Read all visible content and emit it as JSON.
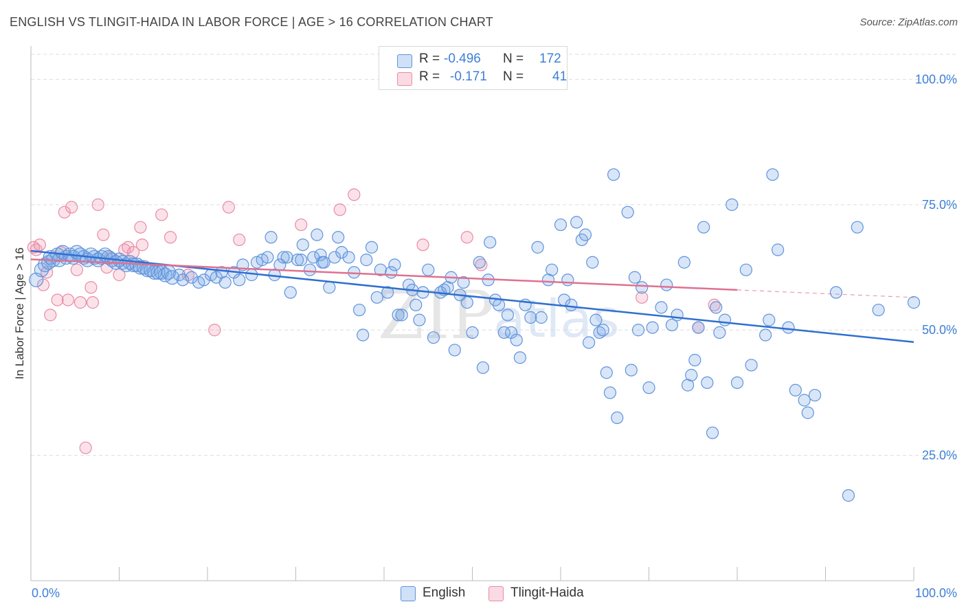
{
  "title": "ENGLISH VS TLINGIT-HAIDA IN LABOR FORCE | AGE > 16 CORRELATION CHART",
  "source": "Source: ZipAtlas.com",
  "legend": {
    "rows": [
      {
        "r_label": "R =",
        "r_value": "-0.496",
        "n_label": "N =",
        "n_value": "172"
      },
      {
        "r_label": "R =",
        "r_value": "-0.171",
        "n_label": "N =",
        "n_value": "41"
      }
    ]
  },
  "bottom_legend": {
    "english": "English",
    "tlingit": "Tlingit-Haida"
  },
  "colors": {
    "english_fill": "rgba(120,165,230,0.28)",
    "english_stroke": "#5f93db",
    "english_line": "#2f6fd0",
    "tlingit_fill": "rgba(240,150,175,0.28)",
    "tlingit_stroke": "#e88ba6",
    "tlingit_line": "#e0708f",
    "tick_text": "#3d7fd6",
    "grid": "#dddddd"
  },
  "chart_data": {
    "type": "scatter",
    "title": "ENGLISH VS TLINGIT-HAIDA IN LABOR FORCE | AGE > 16 CORRELATION CHART",
    "xlabel": "",
    "ylabel": "In Labor Force | Age > 16",
    "xlim": [
      0,
      100
    ],
    "ylim": [
      0,
      105
    ],
    "x_tick_labels": [
      "0.0%",
      "100.0%"
    ],
    "y_ticks": [
      25,
      50,
      75,
      100
    ],
    "y_tick_labels": [
      "25.0%",
      "50.0%",
      "75.0%",
      "100.0%"
    ],
    "grid": true,
    "watermark": "ZIPatlas",
    "series": [
      {
        "name": "English",
        "R": -0.496,
        "N": 172,
        "trend": {
          "x": [
            0,
            100
          ],
          "y": [
            65.8,
            47.6
          ]
        },
        "points": [
          [
            0.6,
            60
          ],
          [
            1.2,
            62
          ],
          [
            1.6,
            63
          ],
          [
            2,
            63.5
          ],
          [
            2.2,
            64.5
          ],
          [
            2.5,
            64
          ],
          [
            3,
            65
          ],
          [
            3.2,
            64
          ],
          [
            3.6,
            65.5
          ],
          [
            4,
            64.5
          ],
          [
            4.4,
            65
          ],
          [
            4.8,
            64.5
          ],
          [
            5.2,
            65.5
          ],
          [
            5.6,
            65
          ],
          [
            6,
            64.5
          ],
          [
            6.4,
            64
          ],
          [
            6.8,
            65
          ],
          [
            7.2,
            64.5
          ],
          [
            7.6,
            64
          ],
          [
            8,
            64.5
          ],
          [
            8.4,
            65
          ],
          [
            8.8,
            64.5
          ],
          [
            9.2,
            64
          ],
          [
            9.6,
            63.5
          ],
          [
            10,
            64
          ],
          [
            10.4,
            63.5
          ],
          [
            10.8,
            63
          ],
          [
            11.2,
            63.5
          ],
          [
            11.6,
            63
          ],
          [
            12,
            63
          ],
          [
            12.4,
            62.5
          ],
          [
            12.8,
            62.5
          ],
          [
            13.2,
            62
          ],
          [
            13.6,
            62
          ],
          [
            14,
            61.5
          ],
          [
            14.4,
            61.5
          ],
          [
            14.8,
            61.5
          ],
          [
            15.2,
            61
          ],
          [
            15.6,
            61.5
          ],
          [
            16,
            60.5
          ],
          [
            16.8,
            61
          ],
          [
            17.2,
            60
          ],
          [
            18.2,
            60.5
          ],
          [
            19,
            59.5
          ],
          [
            19.6,
            60
          ],
          [
            20.4,
            61
          ],
          [
            21,
            60.5
          ],
          [
            21.6,
            61.5
          ],
          [
            22,
            59.5
          ],
          [
            23,
            61.5
          ],
          [
            23.6,
            60
          ],
          [
            24,
            63
          ],
          [
            25,
            61
          ],
          [
            25.6,
            63.5
          ],
          [
            26.2,
            64
          ],
          [
            26.8,
            64.5
          ],
          [
            27.2,
            68.5
          ],
          [
            27.6,
            61
          ],
          [
            28.2,
            63
          ],
          [
            28.6,
            64.5
          ],
          [
            29,
            64.5
          ],
          [
            29.4,
            57.5
          ],
          [
            30.2,
            64
          ],
          [
            30.6,
            64
          ],
          [
            30.8,
            67
          ],
          [
            31.6,
            62
          ],
          [
            32,
            64.5
          ],
          [
            32.4,
            69
          ],
          [
            32.8,
            65
          ],
          [
            33,
            63.5
          ],
          [
            33.2,
            63.5
          ],
          [
            33.8,
            58.5
          ],
          [
            34.4,
            64.5
          ],
          [
            34.8,
            68.5
          ],
          [
            35.2,
            65.5
          ],
          [
            36,
            64.5
          ],
          [
            36.6,
            61.5
          ],
          [
            37.2,
            54
          ],
          [
            37.6,
            49
          ],
          [
            38,
            64
          ],
          [
            38.6,
            66.5
          ],
          [
            39.2,
            56.5
          ],
          [
            39.6,
            62
          ],
          [
            40.4,
            57.5
          ],
          [
            40.8,
            61.5
          ],
          [
            41.2,
            63
          ],
          [
            41.6,
            53
          ],
          [
            42,
            53
          ],
          [
            42.8,
            59
          ],
          [
            43.2,
            58
          ],
          [
            43.6,
            55
          ],
          [
            44,
            52
          ],
          [
            44.4,
            57.5
          ],
          [
            45,
            62
          ],
          [
            45.6,
            48.5
          ],
          [
            46.4,
            57.5
          ],
          [
            46.8,
            58
          ],
          [
            47.2,
            58.5
          ],
          [
            47.6,
            60.5
          ],
          [
            48,
            46
          ],
          [
            48.6,
            57
          ],
          [
            49,
            59.5
          ],
          [
            49.4,
            55.5
          ],
          [
            50,
            49.5
          ],
          [
            50.8,
            63.5
          ],
          [
            51.2,
            42.5
          ],
          [
            51.8,
            60
          ],
          [
            52,
            67.5
          ],
          [
            52.6,
            56
          ],
          [
            53,
            55
          ],
          [
            53.6,
            49.5
          ],
          [
            54,
            53
          ],
          [
            54.4,
            49.5
          ],
          [
            55,
            48
          ],
          [
            55.4,
            44.5
          ],
          [
            56,
            55
          ],
          [
            56.6,
            52.5
          ],
          [
            57.4,
            66.5
          ],
          [
            57.8,
            52.5
          ],
          [
            58.6,
            60
          ],
          [
            59,
            62
          ],
          [
            60,
            71
          ],
          [
            60.4,
            56
          ],
          [
            60.8,
            60
          ],
          [
            61.2,
            55
          ],
          [
            61.8,
            71.5
          ],
          [
            62.4,
            68
          ],
          [
            62.8,
            69
          ],
          [
            63.2,
            47.5
          ],
          [
            63.6,
            63.5
          ],
          [
            64,
            52
          ],
          [
            64.4,
            49.5
          ],
          [
            64.8,
            50
          ],
          [
            65.2,
            41.5
          ],
          [
            65.6,
            37.5
          ],
          [
            66,
            81
          ],
          [
            66.4,
            32.5
          ],
          [
            67.6,
            73.5
          ],
          [
            68,
            42
          ],
          [
            68.4,
            60.5
          ],
          [
            68.8,
            50
          ],
          [
            69.2,
            58.5
          ],
          [
            70,
            38.5
          ],
          [
            70.4,
            50.5
          ],
          [
            71.4,
            54.5
          ],
          [
            72,
            59
          ],
          [
            72.6,
            51
          ],
          [
            73.2,
            53
          ],
          [
            74,
            63.5
          ],
          [
            74.4,
            39
          ],
          [
            74.8,
            41
          ],
          [
            75.2,
            44
          ],
          [
            75.6,
            50.5
          ],
          [
            76.2,
            70.5
          ],
          [
            76.6,
            39.5
          ],
          [
            77.2,
            29.5
          ],
          [
            77.6,
            54.5
          ],
          [
            78,
            49.5
          ],
          [
            78.6,
            52
          ],
          [
            79.4,
            75
          ],
          [
            80,
            39.5
          ],
          [
            81,
            62
          ],
          [
            81.6,
            43
          ],
          [
            83.2,
            49
          ],
          [
            83.6,
            52
          ],
          [
            84,
            81
          ],
          [
            84.6,
            66
          ],
          [
            85.8,
            50.5
          ],
          [
            86.6,
            38
          ],
          [
            87.6,
            36
          ],
          [
            88,
            33.5
          ],
          [
            88.8,
            37
          ],
          [
            91.2,
            57.5
          ],
          [
            92.6,
            17
          ],
          [
            93.6,
            70.5
          ],
          [
            96,
            54
          ],
          [
            100,
            55.5
          ]
        ]
      },
      {
        "name": "Tlingit-Haida",
        "R": -0.171,
        "N": 41,
        "trend": {
          "x": [
            0,
            80
          ],
          "y": [
            64.1,
            58.0
          ]
        },
        "trend_dashed": {
          "x": [
            80,
            100
          ],
          "y": [
            58.0,
            56.5
          ]
        },
        "points": [
          [
            0.3,
            66.5
          ],
          [
            0.6,
            66
          ],
          [
            1,
            67
          ],
          [
            1.4,
            59
          ],
          [
            1.8,
            61.5
          ],
          [
            2.2,
            53
          ],
          [
            3,
            56
          ],
          [
            3.4,
            65.5
          ],
          [
            3.8,
            73.5
          ],
          [
            4.2,
            56
          ],
          [
            4.6,
            74.5
          ],
          [
            5.2,
            62
          ],
          [
            5.6,
            55.5
          ],
          [
            6.2,
            26.5
          ],
          [
            6.8,
            58.5
          ],
          [
            7,
            55.5
          ],
          [
            7.6,
            75
          ],
          [
            8.2,
            69
          ],
          [
            8.6,
            62.5
          ],
          [
            9,
            64.5
          ],
          [
            10,
            61
          ],
          [
            10.6,
            66
          ],
          [
            11,
            66.5
          ],
          [
            11.6,
            65.5
          ],
          [
            12.4,
            70.5
          ],
          [
            12.6,
            67
          ],
          [
            14.8,
            73
          ],
          [
            15.8,
            68.5
          ],
          [
            17.8,
            61
          ],
          [
            20.8,
            50
          ],
          [
            22.4,
            74.5
          ],
          [
            23.6,
            68
          ],
          [
            30.6,
            71
          ],
          [
            35,
            74
          ],
          [
            36.6,
            77
          ],
          [
            44.4,
            67
          ],
          [
            49.4,
            68.5
          ],
          [
            51,
            63
          ],
          [
            69.2,
            56.5
          ],
          [
            75.6,
            50.5
          ],
          [
            77.4,
            55
          ]
        ]
      }
    ]
  }
}
